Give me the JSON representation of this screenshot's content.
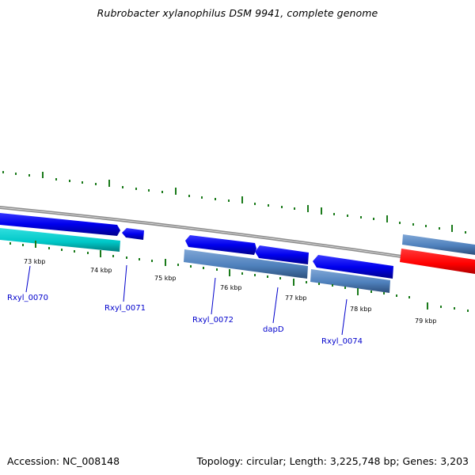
{
  "title": "Rubrobacter xylanophilus DSM 9941, complete genome",
  "footer": {
    "accession": "Accession: NC_008148",
    "stats": "Topology: circular; Length: 3,225,748 bp; Genes: 3,203"
  },
  "tick_labels": [
    "73 kbp",
    "74 kbp",
    "75 kbp",
    "76 kbp",
    "77 kbp",
    "78 kbp",
    "79 kbp"
  ],
  "gene_labels": [
    "Rxyl_0070",
    "Rxyl_0071",
    "Rxyl_0072",
    "dapD",
    "Rxyl_0074"
  ],
  "colors": {
    "cds": "#0000ee",
    "cds_dark": "#00008b",
    "gene_plus": "#00cccc",
    "gene_minus": "#4f81bd",
    "rrna": "#ff0000",
    "backbone": "#8c8c8c",
    "tick": "#1a7a1a",
    "label": "#0000cc"
  }
}
